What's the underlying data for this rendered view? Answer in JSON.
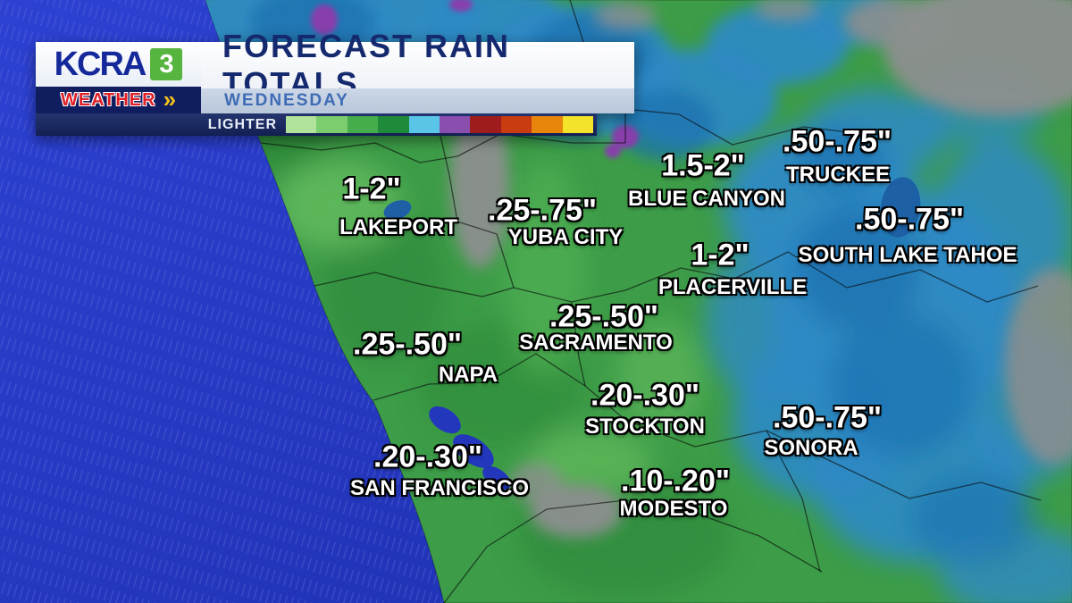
{
  "header": {
    "logo": {
      "call_letters": "KCRA",
      "channel": "3",
      "brand": "WEATHER",
      "chevrons": "»"
    },
    "title": "FORECAST RAIN TOTALS",
    "subtitle": "WEDNESDAY"
  },
  "legend": {
    "label": "LIGHTER",
    "colors": [
      "#b2e39a",
      "#7ccd6d",
      "#45ad4c",
      "#1f8a3a",
      "#59c6e8",
      "#8a4fae",
      "#9e1c1c",
      "#c83c10",
      "#e8860c",
      "#f4e22b"
    ]
  },
  "map": {
    "labels": [
      {
        "id": "lakeport",
        "amount": "1-2\"",
        "city": "LAKEPORT"
      },
      {
        "id": "yuba-city",
        "amount": ".25-.75\"",
        "city": "YUBA CITY"
      },
      {
        "id": "blue-canyon",
        "amount": "1.5-2\"",
        "city": "BLUE CANYON"
      },
      {
        "id": "truckee",
        "amount": ".50-.75\"",
        "city": "TRUCKEE"
      },
      {
        "id": "south-lake-tahoe",
        "amount": ".50-.75\"",
        "city": "SOUTH LAKE TAHOE"
      },
      {
        "id": "placerville",
        "amount": "1-2\"",
        "city": "PLACERVILLE"
      },
      {
        "id": "sacramento",
        "amount": ".25-.50\"",
        "city": "SACRAMENTO"
      },
      {
        "id": "napa",
        "amount": ".25-.50\"",
        "city": "NAPA"
      },
      {
        "id": "stockton",
        "amount": ".20-.30\"",
        "city": "STOCKTON"
      },
      {
        "id": "sonora",
        "amount": ".50-.75\"",
        "city": "SONORA"
      },
      {
        "id": "san-francisco",
        "amount": ".20-.30\"",
        "city": "SAN FRANCISCO"
      },
      {
        "id": "modesto",
        "amount": ".10-.20\"",
        "city": "MODESTO"
      }
    ]
  },
  "colors": {
    "ocean_blue": "#2b3ed2",
    "land_green": "#3e9f49",
    "rain_blue": "#2f8cc9",
    "terrain_gray": "#8f9191",
    "heavy_purple": "#8a3fae",
    "header_navy": "#101d5e",
    "brand_red": "#e02028",
    "brand_green": "#55b53e",
    "accent_yellow": "#f2c21a"
  }
}
